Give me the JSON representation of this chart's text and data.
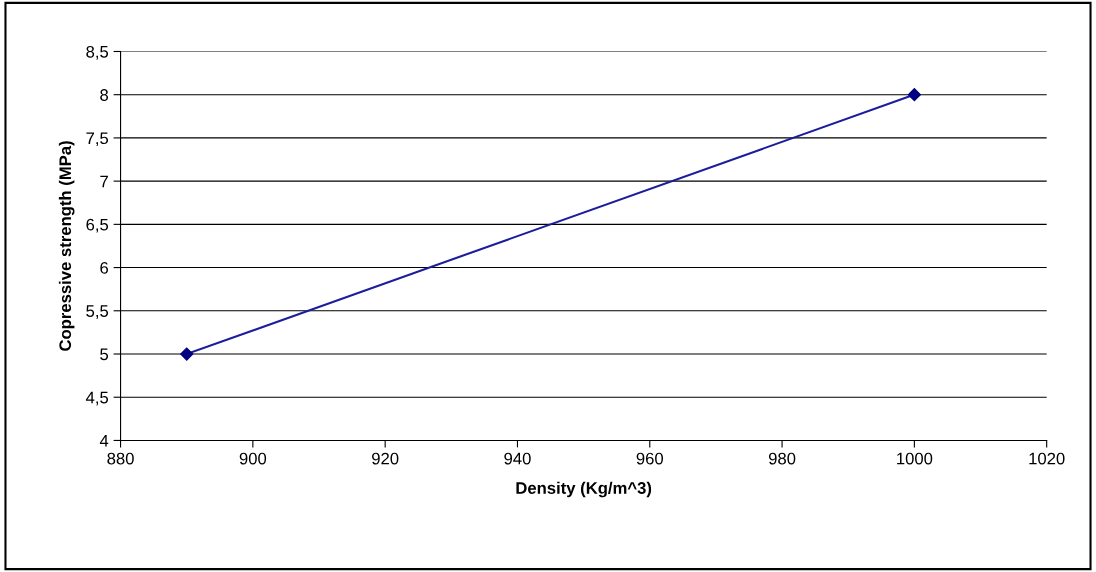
{
  "chart_data": {
    "type": "line",
    "xlabel": "Density (Kg/m^3)",
    "ylabel": "Copressive strength (MPa)",
    "x": [
      890,
      1000
    ],
    "series": [
      {
        "color": "#1c1c9c",
        "values": [
          5,
          8
        ]
      }
    ],
    "marker": "diamond",
    "line_style": "solid",
    "grid": "y",
    "legend": false,
    "xlim": [
      880,
      1020
    ],
    "xticks": [
      880,
      900,
      920,
      940,
      960,
      980,
      1000,
      1020
    ],
    "ylim": [
      4,
      8.5
    ],
    "yticks": [
      4,
      {
        "value": 4.5,
        "label": "4,5"
      },
      5,
      {
        "value": 5.5,
        "label": "5,5"
      },
      6,
      {
        "value": 6.5,
        "label": "6,5"
      },
      7,
      {
        "value": 7.5,
        "label": "7,5"
      },
      8,
      {
        "value": 8.5,
        "label": "8,5"
      }
    ]
  }
}
